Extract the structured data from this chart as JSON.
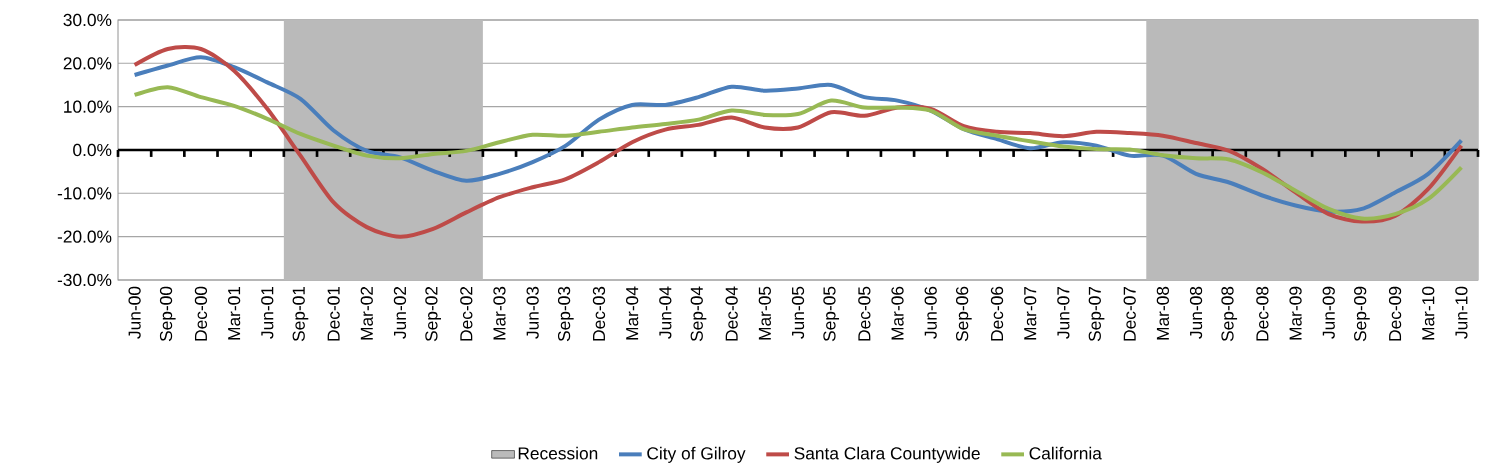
{
  "chart_data": {
    "type": "line",
    "categories": [
      "Jun-00",
      "Sep-00",
      "Dec-00",
      "Mar-01",
      "Jun-01",
      "Sep-01",
      "Dec-01",
      "Mar-02",
      "Jun-02",
      "Sep-02",
      "Dec-02",
      "Mar-03",
      "Jun-03",
      "Sep-03",
      "Dec-03",
      "Mar-04",
      "Jun-04",
      "Sep-04",
      "Dec-04",
      "Mar-05",
      "Jun-05",
      "Sep-05",
      "Dec-05",
      "Mar-06",
      "Jun-06",
      "Sep-06",
      "Dec-06",
      "Mar-07",
      "Jun-07",
      "Sep-07",
      "Dec-07",
      "Mar-08",
      "Jun-08",
      "Sep-08",
      "Dec-08",
      "Mar-09",
      "Jun-09",
      "Sep-09",
      "Dec-09",
      "Mar-10",
      "Jun-10"
    ],
    "series": [
      {
        "name": "City of Gilroy",
        "color": "#4a7ebb",
        "values": [
          17.3,
          19.5,
          21.4,
          19.1,
          15.6,
          11.8,
          4.5,
          -0.2,
          -1.7,
          -4.8,
          -7.1,
          -5.5,
          -2.8,
          1.0,
          7.0,
          10.4,
          10.4,
          12.2,
          14.6,
          13.7,
          14.2,
          15.0,
          12.2,
          11.4,
          9.1,
          4.8,
          2.5,
          0.4,
          1.8,
          1.0,
          -1.3,
          -1.3,
          -5.5,
          -7.5,
          -10.5,
          -12.8,
          -14.2,
          -13.6,
          -9.8,
          -5.5,
          2.2
        ]
      },
      {
        "name": "Santa Clara Countywide",
        "color": "#be4b48",
        "values": [
          19.6,
          23.3,
          23.3,
          18.3,
          9.5,
          -1.3,
          -12.1,
          -17.8,
          -20.0,
          -18.2,
          -14.4,
          -10.9,
          -8.6,
          -6.7,
          -2.8,
          1.8,
          4.7,
          5.8,
          7.5,
          5.2,
          5.2,
          8.7,
          7.9,
          9.8,
          9.5,
          5.5,
          4.2,
          3.9,
          3.2,
          4.2,
          3.9,
          3.3,
          1.6,
          -0.2,
          -4.4,
          -9.8,
          -14.8,
          -16.5,
          -15.2,
          -9.0,
          1.0
        ]
      },
      {
        "name": "California",
        "color": "#98b954",
        "values": [
          12.7,
          14.5,
          12.2,
          10.2,
          7.2,
          3.7,
          1.0,
          -1.3,
          -1.9,
          -0.9,
          -0.2,
          1.8,
          3.5,
          3.3,
          4.2,
          5.2,
          6.0,
          7.0,
          9.1,
          8.1,
          8.3,
          11.4,
          9.8,
          9.8,
          9.1,
          4.8,
          3.3,
          2.0,
          0.8,
          0.2,
          0.1,
          -1.2,
          -1.9,
          -2.2,
          -5.2,
          -9.4,
          -13.6,
          -15.8,
          -14.8,
          -11.3,
          -4.0
        ]
      }
    ],
    "bands": [
      {
        "axis": "x",
        "from": "Sep-01",
        "to": "Dec-02",
        "label": "Recession",
        "color": "#bababa"
      },
      {
        "axis": "x",
        "from": "Mar-08",
        "to": "Jun-10",
        "color": "#bababa"
      }
    ],
    "ylim": [
      -30,
      30
    ],
    "yticks": [
      {
        "value": -30,
        "label": "-30.0%"
      },
      {
        "value": -20,
        "label": "-20.0%"
      },
      {
        "value": -10,
        "label": "-10.0%"
      },
      {
        "value": 0,
        "label": "0.0%"
      },
      {
        "value": 10,
        "label": "10.0%"
      },
      {
        "value": 20,
        "label": "20.0%"
      },
      {
        "value": 30,
        "label": "30.0%"
      }
    ],
    "grid": "y",
    "legend": "bottom",
    "marker": "none",
    "line_style": "solid"
  }
}
